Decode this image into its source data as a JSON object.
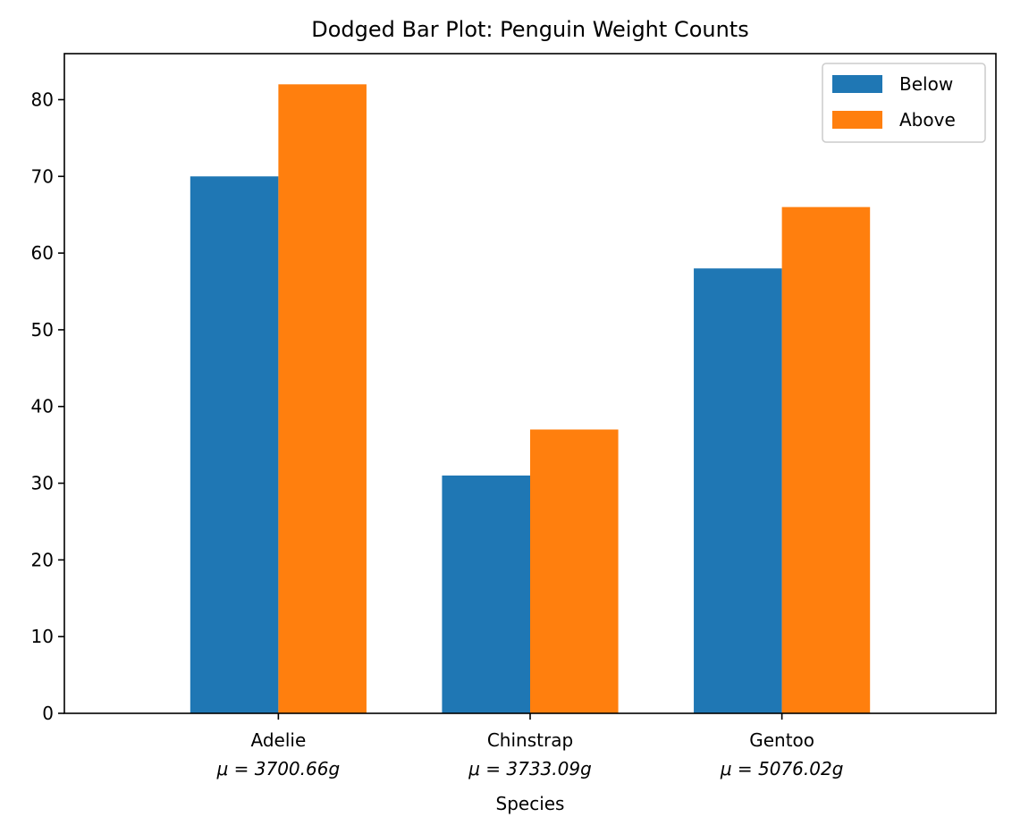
{
  "chart_data": {
    "type": "bar",
    "title": "Dodged Bar Plot: Penguin Weight Counts",
    "xlabel": "Species",
    "ylabel": "",
    "categories": [
      "Adelie",
      "Chinstrap",
      "Gentoo"
    ],
    "category_sublabels": [
      "μ = 3700.66g",
      "μ = 3733.09g",
      "μ = 5076.02g"
    ],
    "series": [
      {
        "name": "Below",
        "color": "#1f77b4",
        "values": [
          70,
          31,
          58
        ]
      },
      {
        "name": "Above",
        "color": "#ff7f0e",
        "values": [
          82,
          37,
          66
        ]
      }
    ],
    "ylim": [
      0,
      86
    ],
    "yticks": [
      0,
      10,
      20,
      30,
      40,
      50,
      60,
      70,
      80
    ],
    "grid": false,
    "legend_position": "top-right"
  }
}
